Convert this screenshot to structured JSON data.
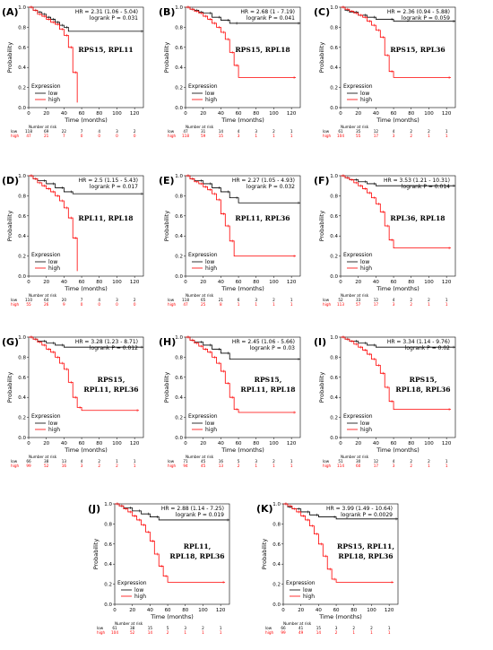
{
  "figure": {
    "common": {
      "ylabel": "Probability",
      "xlabel": "Time (months)",
      "legend_title": "Expression",
      "legend_low": "low",
      "legend_high": "high",
      "risk_title": "Number at risk",
      "yticks": [
        "0.0",
        "0.2",
        "0.4",
        "0.6",
        "0.8",
        "1.0"
      ],
      "xticks": [
        "0",
        "20",
        "40",
        "60",
        "80",
        "100",
        "120"
      ],
      "colors": {
        "low": "#000000",
        "high": "#ff0000"
      }
    }
  },
  "chart_data": [
    {
      "type": "line",
      "panel": "(A)",
      "genes": [
        "RPS15, RPL11"
      ],
      "hr": "HR = 2.31 (1.06 - 5.04)",
      "logrank": "logrank P = 0.031",
      "xlim": [
        0,
        130
      ],
      "ylim": [
        0,
        1
      ],
      "series": [
        {
          "name": "low",
          "x": [
            0,
            5,
            10,
            15,
            20,
            25,
            30,
            35,
            40,
            45,
            130
          ],
          "y": [
            1,
            0.97,
            0.95,
            0.93,
            0.9,
            0.88,
            0.85,
            0.82,
            0.8,
            0.76,
            0.76
          ]
        },
        {
          "name": "high",
          "x": [
            0,
            5,
            10,
            15,
            20,
            25,
            30,
            35,
            40,
            45,
            50,
            55
          ],
          "y": [
            1,
            0.97,
            0.93,
            0.91,
            0.88,
            0.85,
            0.83,
            0.78,
            0.72,
            0.6,
            0.35,
            0.05
          ]
        }
      ],
      "risk": {
        "low": [
          "118",
          "69",
          "22",
          "7",
          "4",
          "3",
          "2"
        ],
        "high": [
          "47",
          "21",
          "7",
          "0",
          "0",
          "0",
          "0"
        ]
      }
    },
    {
      "type": "line",
      "panel": "(B)",
      "genes": [
        "RPS15, RPL18"
      ],
      "hr": "HR = 2.68 (1 - 7.19)",
      "logrank": "logrank P = 0.041",
      "xlim": [
        0,
        130
      ],
      "ylim": [
        0,
        1
      ],
      "series": [
        {
          "name": "low",
          "x": [
            0,
            5,
            10,
            15,
            20,
            30,
            40,
            50,
            60,
            130
          ],
          "y": [
            1,
            0.98,
            0.97,
            0.95,
            0.94,
            0.9,
            0.87,
            0.84,
            0.84,
            0.84
          ]
        },
        {
          "name": "high",
          "x": [
            0,
            5,
            10,
            15,
            20,
            25,
            30,
            35,
            40,
            45,
            50,
            55,
            60,
            125
          ],
          "y": [
            1,
            0.98,
            0.96,
            0.94,
            0.91,
            0.88,
            0.84,
            0.8,
            0.75,
            0.68,
            0.55,
            0.42,
            0.3,
            0.3
          ]
        }
      ],
      "risk": {
        "low": [
          "47",
          "31",
          "14",
          "4",
          "3",
          "2",
          "1"
        ],
        "high": [
          "118",
          "59",
          "15",
          "3",
          "1",
          "1",
          "1"
        ]
      }
    },
    {
      "type": "line",
      "panel": "(C)",
      "genes": [
        "RPS15, RPL36"
      ],
      "hr": "HR = 2.36 (0.94 - 5.88)",
      "logrank": "logrank P = 0.059",
      "xlim": [
        0,
        130
      ],
      "ylim": [
        0,
        1
      ],
      "series": [
        {
          "name": "low",
          "x": [
            0,
            5,
            10,
            20,
            30,
            40,
            60,
            130
          ],
          "y": [
            1,
            0.97,
            0.95,
            0.92,
            0.9,
            0.88,
            0.86,
            0.86
          ]
        },
        {
          "name": "high",
          "x": [
            0,
            5,
            10,
            15,
            20,
            25,
            30,
            35,
            40,
            45,
            50,
            55,
            60,
            125
          ],
          "y": [
            1,
            0.98,
            0.96,
            0.94,
            0.92,
            0.9,
            0.86,
            0.82,
            0.77,
            0.7,
            0.52,
            0.36,
            0.3,
            0.3
          ]
        }
      ],
      "risk": {
        "low": [
          "61",
          "35",
          "12",
          "4",
          "2",
          "2",
          "1"
        ],
        "high": [
          "104",
          "55",
          "17",
          "3",
          "2",
          "1",
          "1"
        ]
      }
    },
    {
      "type": "line",
      "panel": "(D)",
      "genes": [
        "RPL11, RPL18"
      ],
      "hr": "HR = 2.5 (1.15 - 5.43)",
      "logrank": "logrank P = 0.017",
      "xlim": [
        0,
        130
      ],
      "ylim": [
        0,
        1
      ],
      "series": [
        {
          "name": "low",
          "x": [
            0,
            5,
            10,
            20,
            30,
            40,
            50,
            130
          ],
          "y": [
            1,
            0.97,
            0.95,
            0.92,
            0.88,
            0.84,
            0.82,
            0.82
          ]
        },
        {
          "name": "high",
          "x": [
            0,
            5,
            10,
            15,
            20,
            25,
            30,
            35,
            40,
            45,
            50,
            55
          ],
          "y": [
            1,
            0.97,
            0.93,
            0.9,
            0.87,
            0.84,
            0.8,
            0.75,
            0.68,
            0.58,
            0.38,
            0.05
          ]
        }
      ],
      "risk": {
        "low": [
          "110",
          "64",
          "20",
          "7",
          "4",
          "3",
          "2"
        ],
        "high": [
          "55",
          "26",
          "9",
          "0",
          "0",
          "0",
          "0"
        ]
      }
    },
    {
      "type": "line",
      "panel": "(E)",
      "genes": [
        "RPL11, RPL36"
      ],
      "hr": "HR = 2.27 (1.05 - 4.93)",
      "logrank": "logrank P = 0.032",
      "xlim": [
        0,
        130
      ],
      "ylim": [
        0,
        1
      ],
      "series": [
        {
          "name": "low",
          "x": [
            0,
            5,
            10,
            20,
            30,
            40,
            50,
            60,
            130
          ],
          "y": [
            1,
            0.97,
            0.95,
            0.92,
            0.88,
            0.84,
            0.78,
            0.73,
            0.73
          ]
        },
        {
          "name": "high",
          "x": [
            0,
            5,
            10,
            15,
            20,
            25,
            30,
            35,
            40,
            45,
            50,
            55,
            125
          ],
          "y": [
            1,
            0.97,
            0.94,
            0.92,
            0.89,
            0.86,
            0.82,
            0.76,
            0.62,
            0.5,
            0.35,
            0.2,
            0.2
          ]
        }
      ],
      "risk": {
        "low": [
          "118",
          "65",
          "21",
          "6",
          "3",
          "2",
          "1"
        ],
        "high": [
          "47",
          "25",
          "8",
          "1",
          "1",
          "1",
          "1"
        ]
      }
    },
    {
      "type": "line",
      "panel": "(F)",
      "genes": [
        "RPL36, RPL18"
      ],
      "hr": "HR = 3.53 (1.21 - 10.31)",
      "logrank": "logrank P = 0.014",
      "xlim": [
        0,
        130
      ],
      "ylim": [
        0,
        1
      ],
      "series": [
        {
          "name": "low",
          "x": [
            0,
            5,
            10,
            20,
            30,
            40,
            130
          ],
          "y": [
            1,
            0.98,
            0.96,
            0.94,
            0.92,
            0.9,
            0.9
          ]
        },
        {
          "name": "high",
          "x": [
            0,
            5,
            10,
            15,
            20,
            25,
            30,
            35,
            40,
            45,
            50,
            55,
            60,
            125
          ],
          "y": [
            1,
            0.98,
            0.96,
            0.93,
            0.9,
            0.87,
            0.83,
            0.78,
            0.72,
            0.64,
            0.5,
            0.36,
            0.28,
            0.28
          ]
        }
      ],
      "risk": {
        "low": [
          "52",
          "33",
          "12",
          "4",
          "2",
          "2",
          "1"
        ],
        "high": [
          "113",
          "57",
          "17",
          "3",
          "2",
          "1",
          "1"
        ]
      }
    },
    {
      "type": "line",
      "panel": "(G)",
      "genes": [
        "RPS15,",
        "RPL11, RPL36"
      ],
      "hr": "HR = 3.28 (1.23 - 8.71)",
      "logrank": "logrank P = 0.012",
      "xlim": [
        0,
        130
      ],
      "ylim": [
        0,
        1
      ],
      "series": [
        {
          "name": "low",
          "x": [
            0,
            5,
            10,
            20,
            30,
            40,
            130
          ],
          "y": [
            1,
            0.98,
            0.96,
            0.94,
            0.92,
            0.9,
            0.9
          ]
        },
        {
          "name": "high",
          "x": [
            0,
            5,
            10,
            15,
            20,
            25,
            30,
            35,
            40,
            45,
            50,
            55,
            60,
            125
          ],
          "y": [
            1,
            0.98,
            0.95,
            0.92,
            0.88,
            0.85,
            0.8,
            0.74,
            0.68,
            0.55,
            0.4,
            0.3,
            0.27,
            0.27
          ]
        }
      ],
      "risk": {
        "low": [
          "66",
          "38",
          "13",
          "4",
          "2",
          "1",
          "1"
        ],
        "high": [
          "99",
          "52",
          "16",
          "3",
          "2",
          "2",
          "1"
        ]
      }
    },
    {
      "type": "line",
      "panel": "(H)",
      "genes": [
        "RPS15,",
        "RPL11, RPL18"
      ],
      "hr": "HR = 2.45 (1.06 - 5.66)",
      "logrank": "logrank P = 0.03",
      "xlim": [
        0,
        130
      ],
      "ylim": [
        0,
        1
      ],
      "series": [
        {
          "name": "low",
          "x": [
            0,
            5,
            10,
            20,
            30,
            40,
            50,
            130
          ],
          "y": [
            1,
            0.97,
            0.95,
            0.92,
            0.88,
            0.84,
            0.78,
            0.78
          ]
        },
        {
          "name": "high",
          "x": [
            0,
            5,
            10,
            15,
            20,
            25,
            30,
            35,
            40,
            45,
            50,
            55,
            60,
            125
          ],
          "y": [
            1,
            0.97,
            0.94,
            0.91,
            0.88,
            0.85,
            0.8,
            0.74,
            0.66,
            0.54,
            0.4,
            0.28,
            0.25,
            0.25
          ]
        }
      ],
      "risk": {
        "low": [
          "71",
          "45",
          "16",
          "5",
          "3",
          "2",
          "1"
        ],
        "high": [
          "94",
          "45",
          "13",
          "2",
          "1",
          "1",
          "1"
        ]
      }
    },
    {
      "type": "line",
      "panel": "(I)",
      "genes": [
        "RPS15,",
        "RPL18, RPL36"
      ],
      "hr": "HR = 3.34 (1.14 - 9.76)",
      "logrank": "logrank P = 0.02",
      "xlim": [
        0,
        130
      ],
      "ylim": [
        0,
        1
      ],
      "series": [
        {
          "name": "low",
          "x": [
            0,
            5,
            10,
            20,
            30,
            40,
            130
          ],
          "y": [
            1,
            0.98,
            0.96,
            0.94,
            0.92,
            0.9,
            0.9
          ]
        },
        {
          "name": "high",
          "x": [
            0,
            5,
            10,
            15,
            20,
            25,
            30,
            35,
            40,
            45,
            50,
            55,
            60,
            125
          ],
          "y": [
            1,
            0.98,
            0.96,
            0.93,
            0.9,
            0.87,
            0.83,
            0.78,
            0.72,
            0.64,
            0.5,
            0.36,
            0.28,
            0.28
          ]
        }
      ],
      "risk": {
        "low": [
          "51",
          "30",
          "12",
          "4",
          "2",
          "2",
          "1"
        ],
        "high": [
          "114",
          "60",
          "17",
          "3",
          "2",
          "1",
          "1"
        ]
      }
    },
    {
      "type": "line",
      "panel": "(J)",
      "genes": [
        "RPL11,",
        "RPL18, RPL36"
      ],
      "hr": "HR = 2.88 (1.14 - 7.25)",
      "logrank": "logrank P = 0.019",
      "xlim": [
        0,
        130
      ],
      "ylim": [
        0,
        1
      ],
      "series": [
        {
          "name": "low",
          "x": [
            0,
            5,
            10,
            20,
            30,
            40,
            50,
            130
          ],
          "y": [
            1,
            0.98,
            0.96,
            0.93,
            0.9,
            0.87,
            0.84,
            0.84
          ]
        },
        {
          "name": "high",
          "x": [
            0,
            5,
            10,
            15,
            20,
            25,
            30,
            35,
            40,
            45,
            50,
            55,
            60,
            125
          ],
          "y": [
            1,
            0.98,
            0.95,
            0.92,
            0.88,
            0.84,
            0.79,
            0.72,
            0.63,
            0.5,
            0.38,
            0.28,
            0.22,
            0.22
          ]
        }
      ],
      "risk": {
        "low": [
          "61",
          "38",
          "15",
          "5",
          "3",
          "2",
          "1"
        ],
        "high": [
          "104",
          "52",
          "14",
          "2",
          "1",
          "1",
          "1"
        ]
      }
    },
    {
      "type": "line",
      "panel": "(K)",
      "genes": [
        "RPS15, RPL11,",
        "RPL18, RPL36"
      ],
      "hr": "HR = 3.99 (1.49 - 10.64)",
      "logrank": "logrank P = 0.0029",
      "xlim": [
        0,
        130
      ],
      "ylim": [
        0,
        1
      ],
      "series": [
        {
          "name": "low",
          "x": [
            0,
            5,
            10,
            20,
            30,
            40,
            60,
            130
          ],
          "y": [
            1,
            0.97,
            0.95,
            0.92,
            0.89,
            0.87,
            0.85,
            0.85
          ]
        },
        {
          "name": "high",
          "x": [
            0,
            5,
            10,
            15,
            20,
            25,
            30,
            35,
            40,
            45,
            50,
            55,
            60,
            125
          ],
          "y": [
            1,
            0.98,
            0.95,
            0.92,
            0.88,
            0.84,
            0.78,
            0.7,
            0.6,
            0.48,
            0.35,
            0.25,
            0.22,
            0.22
          ]
        }
      ],
      "risk": {
        "low": [
          "66",
          "41",
          "15",
          "3",
          "2",
          "2",
          "1"
        ],
        "high": [
          "99",
          "49",
          "14",
          "2",
          "1",
          "1",
          "1"
        ]
      }
    }
  ]
}
